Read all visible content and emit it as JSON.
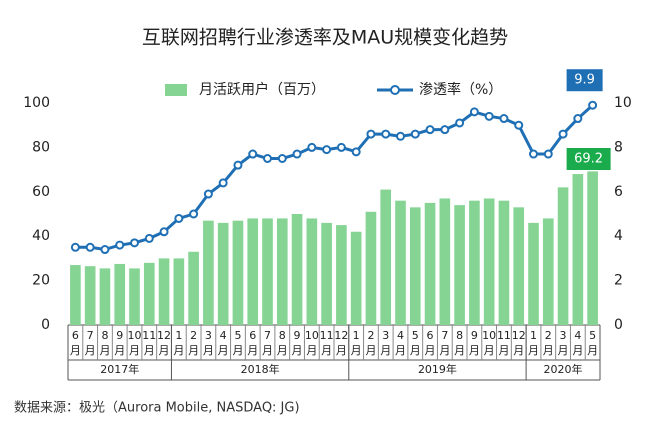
{
  "chart_data": {
    "type": "combo",
    "title": "互联网招聘行业渗透率及MAU规模变化趋势",
    "source": "数据来源：极光（Aurora Mobile, NASDAQ: JG)",
    "categories": [
      "6",
      "7",
      "8",
      "9",
      "10",
      "11",
      "12",
      "1",
      "2",
      "3",
      "4",
      "5",
      "6",
      "7",
      "8",
      "9",
      "10",
      "11",
      "12",
      "1",
      "2",
      "3",
      "4",
      "5",
      "6",
      "7",
      "8",
      "9",
      "10",
      "11",
      "12",
      "1",
      "2",
      "3",
      "4",
      "5"
    ],
    "category_unit": "月",
    "year_groups": [
      {
        "label": "2017年",
        "count": 7
      },
      {
        "label": "2018年",
        "count": 12
      },
      {
        "label": "2019年",
        "count": 12
      },
      {
        "label": "2020年",
        "count": 5
      }
    ],
    "series": [
      {
        "name": "月活跃用户（百万）",
        "type": "bar",
        "color": "#86d494",
        "values": [
          27,
          26.5,
          25.5,
          27.5,
          25.5,
          28,
          30,
          30,
          33,
          47,
          46,
          47,
          48,
          48,
          48,
          50,
          48,
          46,
          45,
          42,
          51,
          61,
          56,
          53,
          55,
          57,
          54,
          56,
          57,
          56,
          53,
          46,
          48,
          62,
          68,
          69.2
        ]
      },
      {
        "name": "渗透率（%）",
        "type": "line",
        "axis": "y2",
        "color": "#1f6fb5",
        "values": [
          3.5,
          3.5,
          3.4,
          3.6,
          3.7,
          3.9,
          4.2,
          4.8,
          5.0,
          5.9,
          6.4,
          7.2,
          7.7,
          7.5,
          7.5,
          7.7,
          8.0,
          7.9,
          8.0,
          7.8,
          8.6,
          8.6,
          8.5,
          8.6,
          8.8,
          8.8,
          9.1,
          9.6,
          9.4,
          9.3,
          9.0,
          7.7,
          7.7,
          8.6,
          9.3,
          9.9
        ]
      }
    ],
    "ylim": [
      0,
      100
    ],
    "yticks": [
      0,
      20,
      40,
      60,
      80,
      100
    ],
    "y2lim": [
      0,
      10
    ],
    "y2ticks": [
      0,
      2,
      4,
      6,
      8,
      10
    ],
    "grid": false,
    "legend": "top"
  }
}
